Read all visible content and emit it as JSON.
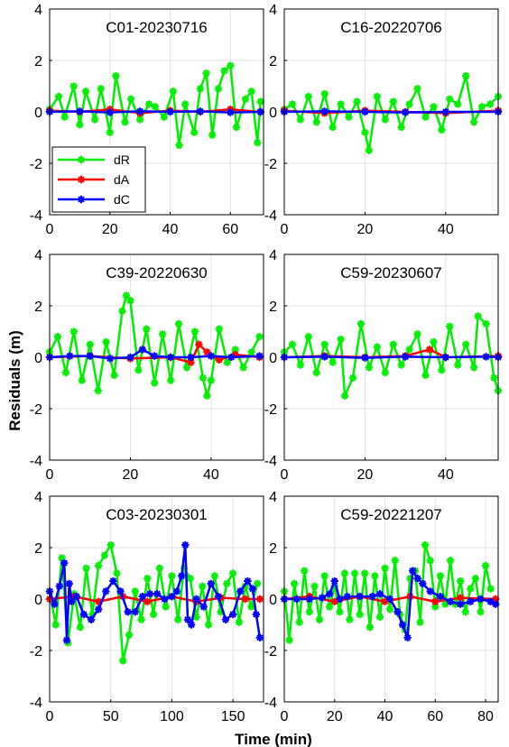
{
  "figure": {
    "ylabel": "Residuals (m)",
    "xlabel": "Time (min)"
  },
  "legend": {
    "placement": "lower-left of first panel",
    "entries": [
      {
        "name": "dR",
        "color": "#00ee00"
      },
      {
        "name": "dA",
        "color": "#ff0000"
      },
      {
        "name": "dC",
        "color": "#0000ff"
      }
    ]
  },
  "chart_data": [
    {
      "type": "line",
      "title": "C01-20230716",
      "xlim": [
        0,
        71
      ],
      "ylim": [
        -4,
        4
      ],
      "xticks": [
        "0",
        "20",
        "40",
        "60"
      ],
      "yticks": [
        "-4",
        "-2",
        "0",
        "2",
        "4"
      ],
      "grid": true,
      "marker": "asterisk",
      "series": [
        {
          "name": "dR",
          "color": "#00ee00",
          "x": [
            0,
            3,
            5,
            8,
            10,
            12,
            15,
            17,
            20,
            22,
            25,
            27,
            30,
            33,
            35,
            38,
            41,
            43,
            45,
            48,
            50,
            52,
            54,
            56,
            58,
            60,
            62,
            65,
            67,
            69,
            70
          ],
          "y": [
            0.1,
            0.6,
            -0.2,
            1.0,
            -0.5,
            0.8,
            -0.3,
            0.9,
            -0.8,
            1.4,
            -0.4,
            0.5,
            -0.3,
            0.3,
            0.2,
            -0.2,
            0.8,
            -1.3,
            0.3,
            -0.8,
            0.9,
            1.5,
            -0.9,
            0.9,
            1.6,
            1.8,
            -0.6,
            0.5,
            0.8,
            -1.2,
            0.4
          ]
        },
        {
          "name": "dA",
          "color": "#ff0000",
          "x": [
            0,
            10,
            20,
            30,
            40,
            50,
            60,
            70
          ],
          "y": [
            0.05,
            0.0,
            0.1,
            -0.05,
            0.05,
            0.0,
            0.1,
            0.0
          ]
        },
        {
          "name": "dC",
          "color": "#0000ff",
          "x": [
            0,
            10,
            20,
            30,
            40,
            50,
            60,
            70
          ],
          "y": [
            0.0,
            0.02,
            -0.02,
            0.02,
            0.0,
            0.02,
            -0.02,
            0.0
          ]
        }
      ]
    },
    {
      "type": "line",
      "title": "C16-20220706",
      "xlim": [
        0,
        53
      ],
      "ylim": [
        -4,
        4
      ],
      "xticks": [
        "0",
        "20",
        "40"
      ],
      "yticks": [
        "-4",
        "-2",
        "0",
        "2",
        "4"
      ],
      "grid": true,
      "marker": "asterisk",
      "series": [
        {
          "name": "dR",
          "color": "#00ee00",
          "x": [
            0,
            2,
            4,
            6,
            8,
            10,
            12,
            14,
            16,
            18,
            20,
            21,
            23,
            25,
            27,
            29,
            31,
            33,
            35,
            37,
            39,
            41,
            43,
            45,
            47,
            49,
            51,
            53
          ],
          "y": [
            0.1,
            0.3,
            -0.3,
            0.6,
            -0.4,
            0.7,
            -0.6,
            0.3,
            -0.2,
            0.4,
            -0.8,
            -1.5,
            0.6,
            -0.3,
            0.4,
            -0.6,
            0.3,
            0.9,
            -0.2,
            0.2,
            -0.7,
            0.5,
            0.3,
            1.4,
            -0.4,
            0.2,
            0.3,
            0.6
          ]
        },
        {
          "name": "dA",
          "color": "#ff0000",
          "x": [
            0,
            10,
            20,
            30,
            40,
            53
          ],
          "y": [
            0.05,
            -0.05,
            0.05,
            0.0,
            -0.05,
            0.05
          ]
        },
        {
          "name": "dC",
          "color": "#0000ff",
          "x": [
            0,
            10,
            20,
            30,
            40,
            53
          ],
          "y": [
            0.0,
            0.02,
            0.0,
            -0.02,
            0.0,
            0.0
          ]
        }
      ]
    },
    {
      "type": "line",
      "title": "C39-20220630",
      "xlim": [
        0,
        53
      ],
      "ylim": [
        -4,
        4
      ],
      "xticks": [
        "0",
        "20",
        "40"
      ],
      "yticks": [
        "-4",
        "-2",
        "0",
        "2",
        "4"
      ],
      "grid": true,
      "marker": "asterisk",
      "series": [
        {
          "name": "dR",
          "color": "#00ee00",
          "x": [
            0,
            2,
            4,
            6,
            8,
            10,
            12,
            14,
            16,
            18,
            19,
            20,
            22,
            24,
            26,
            28,
            30,
            32,
            34,
            36,
            38,
            39,
            40,
            42,
            44,
            46,
            48,
            50,
            52
          ],
          "y": [
            0.2,
            0.8,
            -0.6,
            1.0,
            -0.9,
            0.5,
            -1.3,
            0.6,
            -0.7,
            1.8,
            2.4,
            2.2,
            -0.5,
            1.1,
            -1.0,
            0.9,
            -0.9,
            1.3,
            -0.4,
            1.0,
            -0.8,
            -1.5,
            -0.9,
            1.1,
            -0.2,
            0.3,
            -0.4,
            0.2,
            0.8
          ]
        },
        {
          "name": "dA",
          "color": "#ff0000",
          "x": [
            0,
            10,
            20,
            30,
            35,
            37,
            39,
            42,
            46,
            52
          ],
          "y": [
            0.0,
            0.05,
            -0.05,
            0.0,
            -0.2,
            0.5,
            0.2,
            -0.1,
            0.1,
            0.0
          ]
        },
        {
          "name": "dC",
          "color": "#0000ff",
          "x": [
            0,
            5,
            10,
            15,
            20,
            23,
            26,
            30,
            35,
            40,
            45,
            52
          ],
          "y": [
            0.0,
            0.05,
            0.05,
            -0.05,
            0.0,
            0.3,
            0.05,
            0.0,
            0.0,
            0.05,
            0.0,
            0.05
          ]
        }
      ]
    },
    {
      "type": "line",
      "title": "C59-20230607",
      "xlim": [
        0,
        53
      ],
      "ylim": [
        -4,
        4
      ],
      "xticks": [
        "0",
        "20",
        "40"
      ],
      "yticks": [
        "-4",
        "-2",
        "0",
        "2",
        "4"
      ],
      "grid": true,
      "marker": "asterisk",
      "series": [
        {
          "name": "dR",
          "color": "#00ee00",
          "x": [
            0,
            2,
            4,
            6,
            8,
            10,
            12,
            14,
            15,
            17,
            19,
            21,
            23,
            25,
            27,
            29,
            31,
            33,
            35,
            37,
            39,
            41,
            43,
            45,
            47,
            48,
            50,
            52,
            53
          ],
          "y": [
            0.2,
            0.5,
            -0.3,
            0.8,
            -0.6,
            0.5,
            -0.2,
            0.7,
            -1.5,
            -0.8,
            1.3,
            -0.4,
            0.4,
            -0.6,
            0.5,
            -0.3,
            0.3,
            0.9,
            -0.7,
            0.6,
            -0.5,
            1.2,
            -0.3,
            0.5,
            -0.4,
            1.6,
            1.3,
            -0.8,
            -1.3
          ]
        },
        {
          "name": "dA",
          "color": "#ff0000",
          "x": [
            0,
            10,
            20,
            30,
            36,
            40,
            53
          ],
          "y": [
            0.0,
            0.05,
            0.0,
            0.05,
            0.3,
            0.0,
            0.05
          ]
        },
        {
          "name": "dC",
          "color": "#0000ff",
          "x": [
            0,
            10,
            20,
            30,
            40,
            50,
            53
          ],
          "y": [
            0.0,
            0.02,
            -0.02,
            0.02,
            0.0,
            0.02,
            0.0
          ]
        }
      ]
    },
    {
      "type": "line",
      "title": "C03-20230301",
      "xlim": [
        0,
        175
      ],
      "ylim": [
        -4,
        4
      ],
      "xticks": [
        "0",
        "50",
        "100",
        "150"
      ],
      "yticks": [
        "-4",
        "-2",
        "0",
        "2",
        "4"
      ],
      "grid": true,
      "marker": "asterisk",
      "series": [
        {
          "name": "dR",
          "color": "#00ee00",
          "x": [
            0,
            5,
            10,
            15,
            20,
            25,
            30,
            35,
            40,
            45,
            50,
            55,
            60,
            65,
            70,
            75,
            80,
            85,
            90,
            95,
            100,
            105,
            110,
            115,
            120,
            125,
            130,
            135,
            140,
            145,
            150,
            155,
            160,
            165,
            170
          ],
          "y": [
            0.3,
            -1.0,
            1.6,
            -1.7,
            0.2,
            -1.1,
            1.2,
            -0.6,
            1.3,
            1.7,
            2.1,
            1.0,
            -2.4,
            -1.4,
            0.3,
            -0.8,
            0.8,
            -0.6,
            1.2,
            -0.3,
            0.9,
            -0.8,
            1.2,
            0.8,
            -0.7,
            0.5,
            -1.0,
            0.9,
            -0.5,
            0.6,
            1.0,
            -0.9,
            0.5,
            -0.3,
            0.6
          ]
        },
        {
          "name": "dA",
          "color": "#ff0000",
          "x": [
            0,
            20,
            40,
            60,
            80,
            100,
            120,
            140,
            160,
            172
          ],
          "y": [
            0.0,
            0.1,
            -0.1,
            0.1,
            -0.1,
            0.1,
            -0.1,
            0.05,
            0.0,
            0.0
          ]
        },
        {
          "name": "dC",
          "color": "#0000ff",
          "x": [
            0,
            4,
            8,
            12,
            14,
            16,
            18,
            22,
            28,
            34,
            40,
            46,
            52,
            58,
            64,
            70,
            76,
            82,
            88,
            94,
            100,
            104,
            108,
            111,
            113,
            116,
            120,
            126,
            132,
            138,
            144,
            150,
            156,
            162,
            166,
            169,
            172
          ],
          "y": [
            0.3,
            -0.2,
            0.5,
            1.4,
            -1.6,
            0.6,
            -0.1,
            0.1,
            -0.6,
            -0.8,
            -0.4,
            0.3,
            0.7,
            0.3,
            -0.5,
            -0.5,
            0.1,
            0.2,
            0.2,
            0.0,
            0.1,
            0.3,
            0.9,
            2.1,
            -0.8,
            -1.0,
            0.0,
            -0.3,
            0.6,
            0.1,
            -0.8,
            -0.6,
            0.3,
            0.7,
            0.4,
            -0.6,
            -1.5
          ]
        }
      ]
    },
    {
      "type": "line",
      "title": "C59-20221207",
      "xlim": [
        0,
        85
      ],
      "ylim": [
        -4,
        4
      ],
      "xticks": [
        "0",
        "20",
        "40",
        "60",
        "80"
      ],
      "yticks": [
        "-4",
        "-2",
        "0",
        "2",
        "4"
      ],
      "grid": true,
      "marker": "asterisk",
      "series": [
        {
          "name": "dR",
          "color": "#00ee00",
          "x": [
            0,
            2,
            4,
            6,
            8,
            10,
            12,
            14,
            16,
            18,
            20,
            22,
            24,
            26,
            28,
            30,
            32,
            34,
            36,
            38,
            40,
            42,
            44,
            46,
            48,
            50,
            52,
            54,
            56,
            58,
            60,
            62,
            64,
            66,
            68,
            70,
            72,
            74,
            76,
            78,
            80,
            82
          ],
          "y": [
            0.3,
            -1.6,
            0.6,
            -0.9,
            1.1,
            -0.5,
            0.5,
            -0.8,
            0.9,
            -0.3,
            0.5,
            -0.5,
            1.0,
            -0.8,
            1.0,
            -0.6,
            1.0,
            -1.1,
            0.9,
            -0.7,
            1.2,
            -0.4,
            1.5,
            -0.6,
            -1.2,
            0.8,
            1.1,
            -0.9,
            2.1,
            1.5,
            -0.3,
            0.9,
            -0.2,
            1.5,
            -0.2,
            0.7,
            -0.5,
            0.4,
            0.8,
            -0.5,
            1.3,
            0.4
          ]
        },
        {
          "name": "dA",
          "color": "#ff0000",
          "x": [
            0,
            10,
            20,
            30,
            40,
            50,
            60,
            70,
            84
          ],
          "y": [
            0.0,
            0.1,
            -0.1,
            0.1,
            -0.1,
            0.1,
            -0.1,
            0.05,
            0.0
          ]
        },
        {
          "name": "dC",
          "color": "#0000ff",
          "x": [
            0,
            5,
            10,
            15,
            18,
            20,
            22,
            25,
            30,
            35,
            38,
            42,
            45,
            47,
            49,
            51,
            53,
            55,
            58,
            62,
            66,
            70,
            74,
            78,
            82,
            84
          ],
          "y": [
            0.0,
            0.0,
            0.0,
            0.05,
            0.2,
            0.7,
            0.0,
            0.1,
            0.1,
            0.1,
            0.2,
            0.0,
            -0.5,
            -1.0,
            -1.5,
            1.1,
            0.8,
            0.6,
            0.3,
            0.1,
            -0.1,
            -0.2,
            -0.1,
            0.0,
            -0.1,
            -0.2
          ]
        }
      ]
    }
  ]
}
